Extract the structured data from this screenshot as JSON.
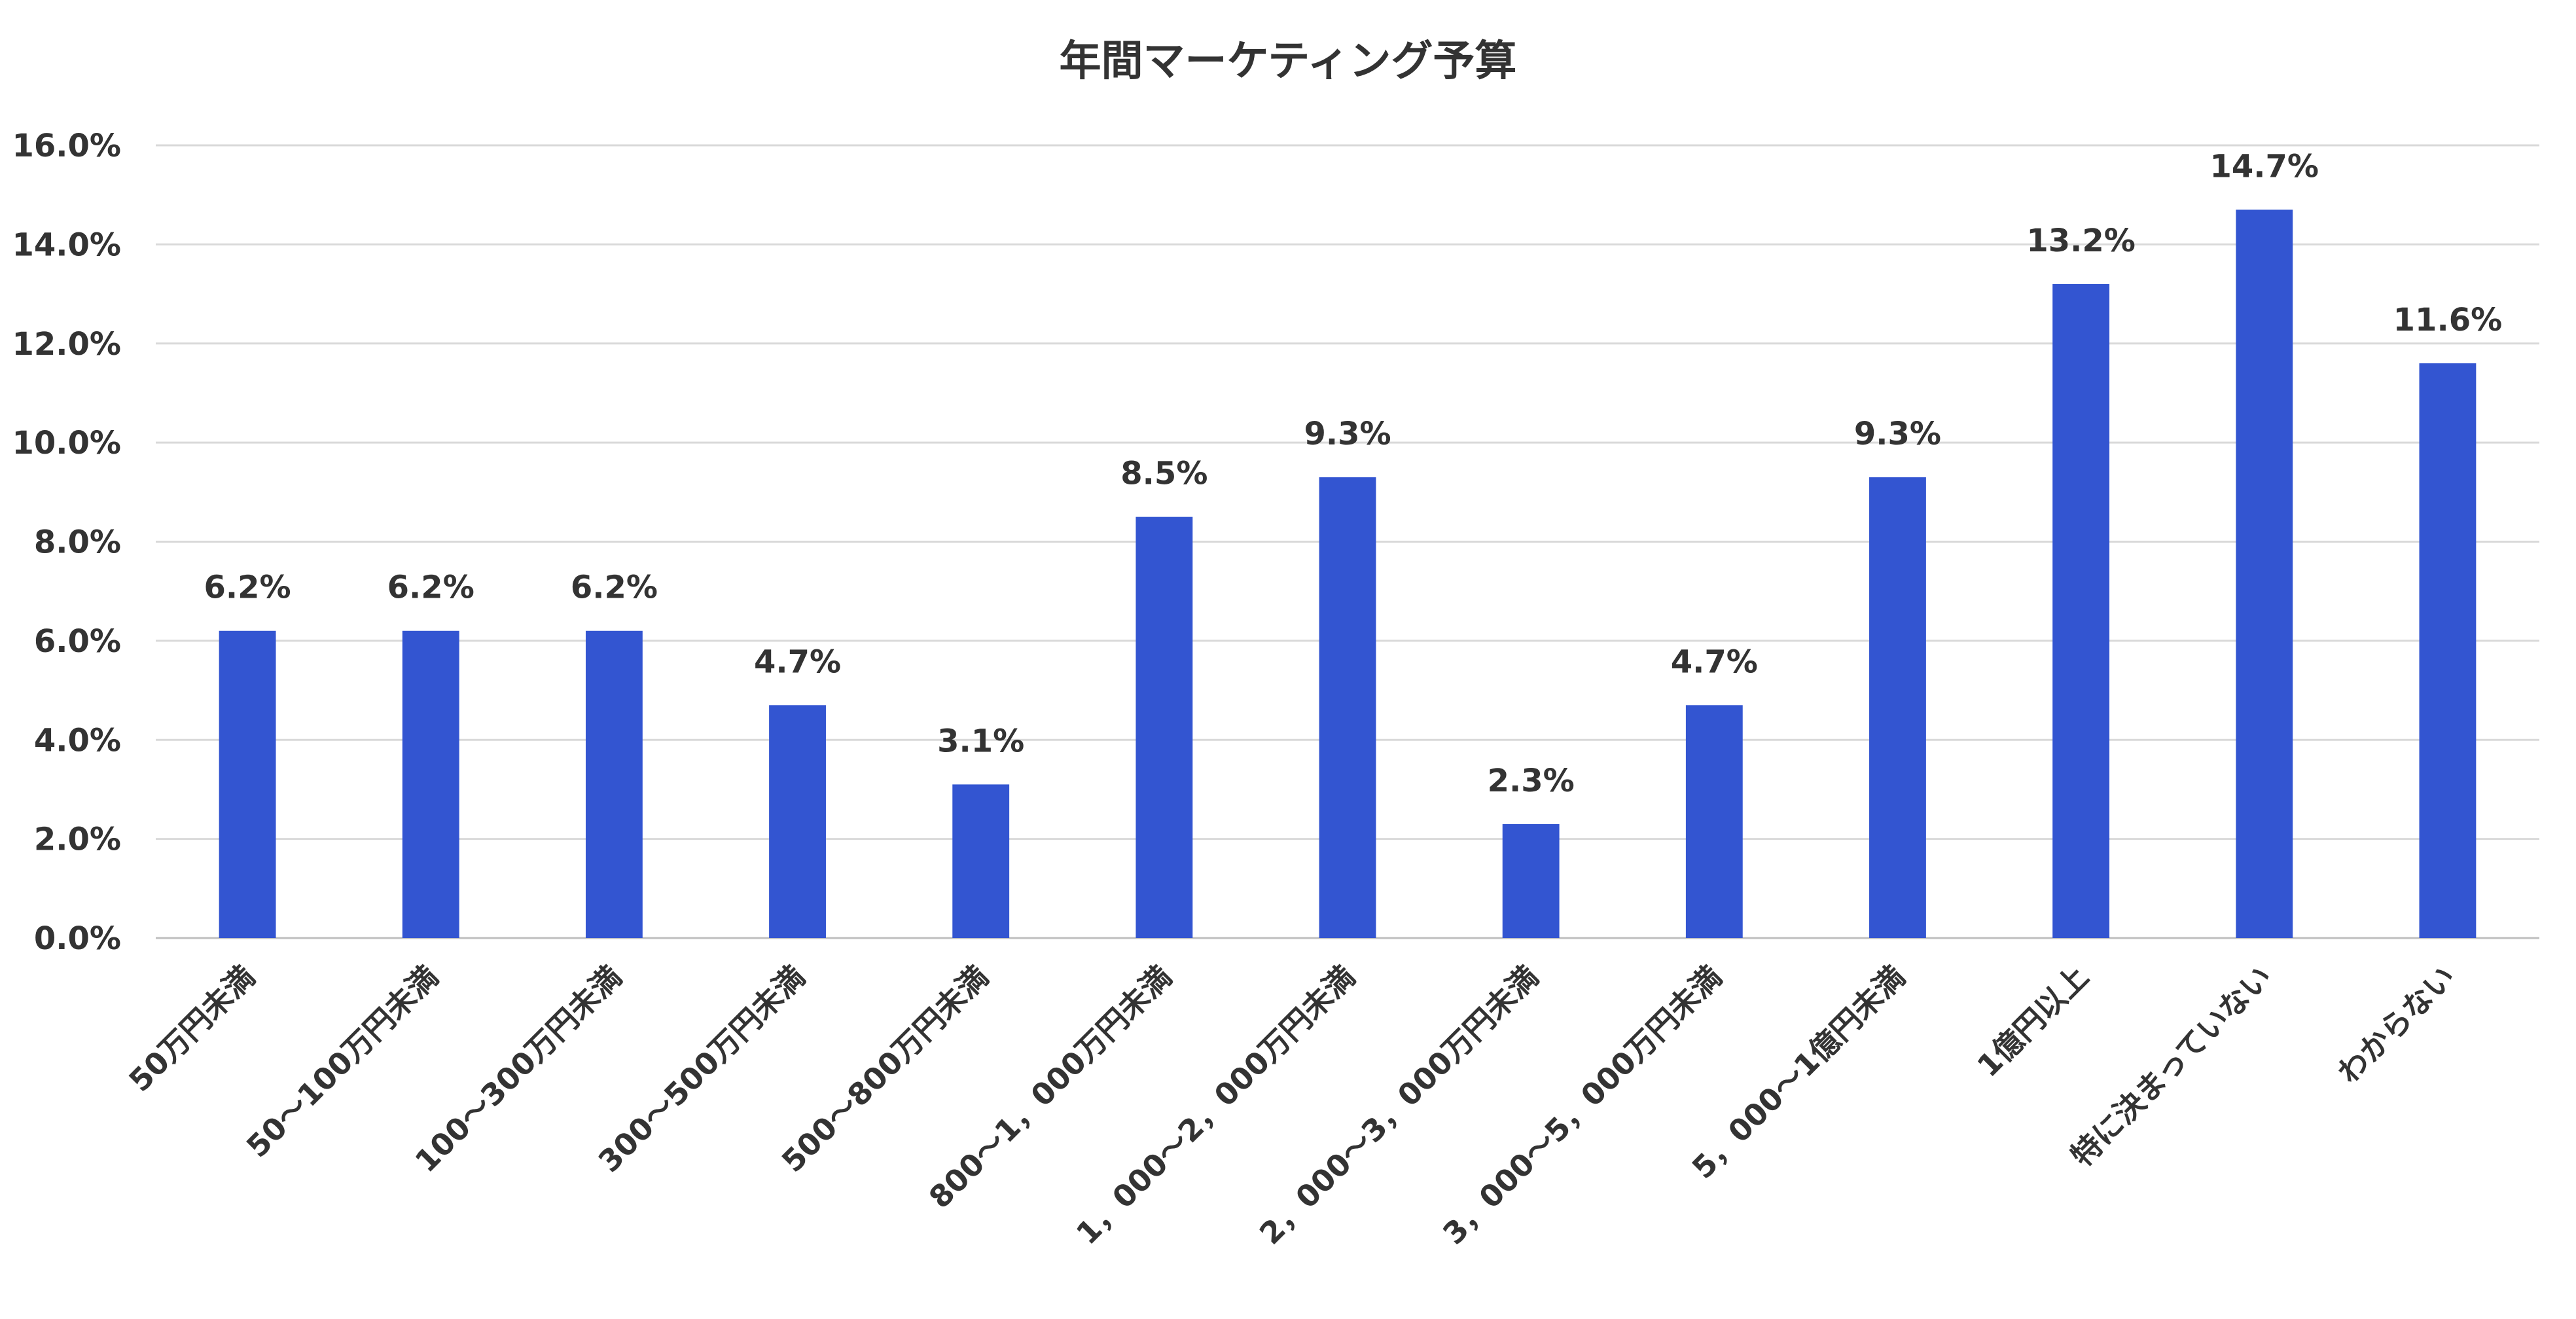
{
  "chart_data": {
    "type": "bar",
    "title": "年間マーケティング予算",
    "xlabel": "",
    "ylabel": "",
    "categories": [
      "50万円未満",
      "50～100万円未満",
      "100～300万円未満",
      "300～500万円未満",
      "500～800万円未満",
      "800～1，000万円未満",
      "1，000～2，000万円未満",
      "2，000～3，000万円未満",
      "3，000～5，000万円未満",
      "5，000～1億円未満",
      "1億円以上",
      "特に決まっていない",
      "わからない"
    ],
    "values": [
      6.2,
      6.2,
      6.2,
      4.7,
      3.1,
      8.5,
      9.3,
      2.3,
      4.7,
      9.3,
      13.2,
      14.7,
      11.6
    ],
    "data_labels": [
      "6.2%",
      "6.2%",
      "6.2%",
      "4.7%",
      "3.1%",
      "8.5%",
      "9.3%",
      "2.3%",
      "4.7%",
      "9.3%",
      "13.2%",
      "14.7%",
      "11.6%"
    ],
    "ylim": [
      0,
      16
    ],
    "y_ticks": [
      0,
      2,
      4,
      6,
      8,
      10,
      12,
      14,
      16
    ],
    "y_tick_labels": [
      "0.0%",
      "2.0%",
      "4.0%",
      "6.0%",
      "8.0%",
      "10.0%",
      "12.0%",
      "14.0%",
      "16.0%"
    ],
    "grid": true,
    "legend": "none",
    "colors": {
      "bar": "#3355d1",
      "grid": "#d9d9d9",
      "text": "#333333"
    }
  }
}
